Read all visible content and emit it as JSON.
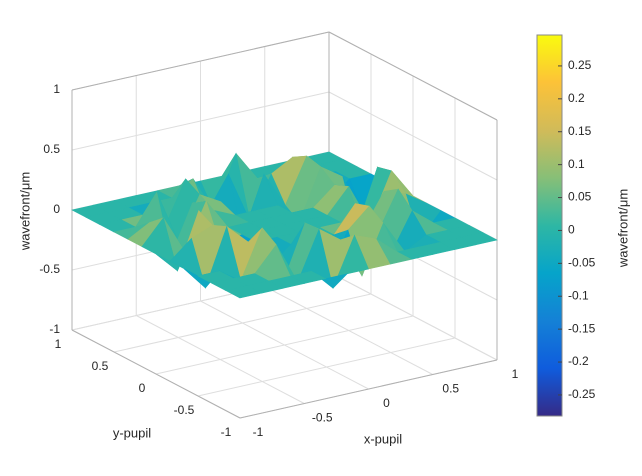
{
  "chart_data": {
    "type": "surface",
    "xlabel": "x-pupil",
    "ylabel": "y-pupil",
    "zlabel": "wavefront/μm",
    "x": [
      -1,
      -0.833,
      -0.667,
      -0.5,
      -0.333,
      -0.167,
      0,
      0.167,
      0.333,
      0.5,
      0.667,
      0.833,
      1
    ],
    "y": [
      -1,
      -0.833,
      -0.667,
      -0.5,
      -0.333,
      -0.167,
      0,
      0.167,
      0.333,
      0.5,
      0.667,
      0.833,
      1
    ],
    "z": [
      [
        0,
        0,
        0,
        0,
        0,
        0,
        0,
        0,
        0,
        0,
        0,
        0,
        0
      ],
      [
        0,
        0,
        0,
        0,
        0,
        -0.18,
        0.22,
        0.15,
        0,
        0,
        0,
        0,
        0
      ],
      [
        0,
        0,
        0,
        0.2,
        -0.15,
        0.25,
        0.12,
        -0.22,
        0.18,
        -0.1,
        0,
        0,
        0
      ],
      [
        0,
        0,
        -0.12,
        0.28,
        -0.2,
        0.24,
        -0.25,
        0.1,
        0.26,
        -0.18,
        0.14,
        0,
        0
      ],
      [
        0,
        -0.2,
        0.27,
        0.1,
        -0.15,
        0,
        0,
        0,
        0.22,
        -0.08,
        0.26,
        -0.2,
        0
      ],
      [
        0,
        0.15,
        0.22,
        -0.24,
        0,
        0,
        0,
        0,
        0,
        -0.1,
        0.18,
        0.12,
        0
      ],
      [
        0,
        -0.18,
        0.28,
        -0.05,
        0,
        0,
        0,
        0,
        0,
        0.2,
        -0.15,
        0.25,
        0
      ],
      [
        0,
        0.2,
        -0.12,
        0.26,
        0,
        0,
        0,
        0,
        0,
        0.15,
        -0.27,
        0.22,
        0
      ],
      [
        0,
        0.1,
        -0.22,
        0.18,
        0.08,
        0,
        0,
        0,
        -0.18,
        0.24,
        0.12,
        -0.25,
        0
      ],
      [
        0,
        0,
        0.25,
        -0.2,
        0.15,
        0.05,
        -0.28,
        0.2,
        -0.1,
        0.27,
        -0.15,
        0,
        0
      ],
      [
        0,
        0,
        0,
        -0.15,
        0.22,
        -0.1,
        0.18,
        -0.25,
        0.1,
        0.2,
        0,
        0,
        0
      ],
      [
        0,
        0,
        0,
        0,
        0,
        0.12,
        -0.2,
        0.25,
        0,
        0,
        0,
        0,
        0
      ],
      [
        0,
        0,
        0,
        0,
        0,
        0,
        0,
        0,
        0,
        0,
        0,
        0,
        0
      ]
    ],
    "xlim": [
      -1,
      1
    ],
    "ylim": [
      -1,
      1
    ],
    "zlim": [
      -1,
      1
    ],
    "xticks": [
      -1,
      -0.5,
      0,
      0.5,
      1
    ],
    "yticks": [
      -1,
      -0.5,
      0,
      0.5,
      1
    ],
    "zticks": [
      -1,
      -0.5,
      0,
      0.5,
      1
    ],
    "grid": true,
    "colorbar": {
      "label": "wavefront/μm",
      "clim": [
        -0.282,
        0.297
      ],
      "ticks": [
        -0.25,
        -0.2,
        -0.15,
        -0.1,
        -0.05,
        0,
        0.05,
        0.1,
        0.15,
        0.2,
        0.25
      ],
      "colormap": [
        "#352a87",
        "#0f5cdd",
        "#1481d6",
        "#06a4ca",
        "#2eb7a4",
        "#87bf77",
        "#d1bb59",
        "#fcc238",
        "#f9fb0e"
      ]
    }
  }
}
